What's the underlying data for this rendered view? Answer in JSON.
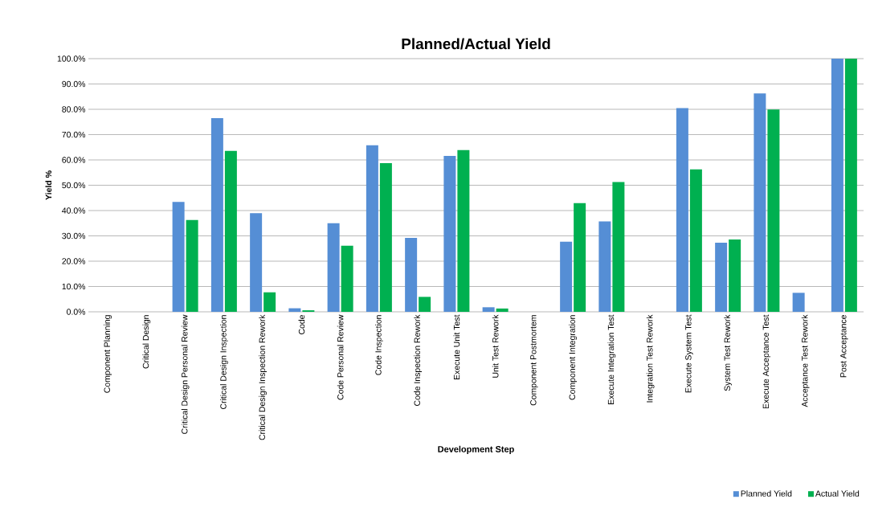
{
  "chart_data": {
    "type": "bar",
    "title": "Planned/Actual Yield",
    "xlabel": "Development Step",
    "ylabel": "Yield %",
    "categories": [
      "Component Planning",
      "Critical Design",
      "Critical Design Personal Review",
      "Critical Design Inspection",
      "Critical Design Inspection Rework",
      "Code",
      "Code Personal Review",
      "Code Inspection",
      "Code Inspection Rework",
      "Execute Unit Test",
      "Unit Test Rework",
      "Component Postmortem",
      "Component Integration",
      "Execute Integration Test",
      "Integration Test Rework",
      "Execute System Test",
      "System Test Rework",
      "Execute Acceptance Test",
      "Acceptance Test Rework",
      "Post Acceptance"
    ],
    "series": [
      {
        "name": "Planned Yield",
        "color": "#558ed5",
        "values": [
          0,
          0,
          43.4,
          76.5,
          39.0,
          1.4,
          35.0,
          65.8,
          29.2,
          61.6,
          1.8,
          0,
          27.7,
          35.7,
          0,
          80.5,
          27.3,
          86.3,
          7.5,
          100
        ]
      },
      {
        "name": "Actual Yield",
        "color": "#00b050",
        "values": [
          0,
          0,
          36.3,
          63.6,
          7.7,
          0.6,
          26.1,
          58.7,
          5.9,
          63.9,
          1.3,
          0,
          42.9,
          51.3,
          0,
          56.3,
          28.6,
          79.9,
          0,
          100
        ]
      }
    ],
    "ylim": [
      0,
      100
    ],
    "yticks": [
      {
        "value": 0,
        "label": "0.0%"
      },
      {
        "value": 10,
        "label": "10.0%"
      },
      {
        "value": 20,
        "label": "20.0%"
      },
      {
        "value": 30,
        "label": "30.0%"
      },
      {
        "value": 40,
        "label": "40.0%"
      },
      {
        "value": 50,
        "label": "50.0%"
      },
      {
        "value": 60,
        "label": "60.0%"
      },
      {
        "value": 70,
        "label": "70.0%"
      },
      {
        "value": 80,
        "label": "80.0%"
      },
      {
        "value": 90,
        "label": "90.0%"
      },
      {
        "value": 100,
        "label": "100.0%"
      }
    ],
    "grid": "y",
    "legend": "bottom right"
  }
}
